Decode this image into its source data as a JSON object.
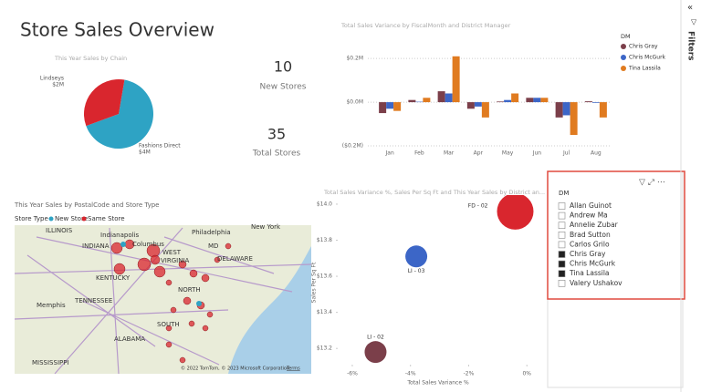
{
  "title": "Store Sales Overview",
  "cards": [
    {
      "value": 10,
      "label": "New Stores"
    },
    {
      "value": 35,
      "label": "Total Stores"
    }
  ],
  "map": {
    "title": "This Year Sales by PostalCode and Store Type",
    "legend_title": "Store Type",
    "legend": [
      {
        "name": "New Store",
        "color": "#2ea3c4"
      },
      {
        "name": "Same Store",
        "color": "#d9262e"
      }
    ],
    "labels": [
      "ILLINOIS",
      "Indianapolis",
      "INDIANA",
      "Columbus",
      "WEST",
      "VIRGINIA",
      "KENTUCKY",
      "Philadelphia",
      "MD",
      "DELAWARE",
      "New York",
      "Memphis",
      "TENNESSEE",
      "NORTH",
      "SOUTH",
      "ALABAMA",
      "MISSISSIPPI"
    ],
    "attribution": "© 2022 TomTom, © 2023 Microsoft Corporation",
    "terms": "Terms"
  },
  "slicer": {
    "title": "DM",
    "items": [
      {
        "name": "Allan Guinot",
        "checked": false
      },
      {
        "name": "Andrew Ma",
        "checked": false
      },
      {
        "name": "Annelie Zubar",
        "checked": false
      },
      {
        "name": "Brad Sutton",
        "checked": false
      },
      {
        "name": "Carlos Grilo",
        "checked": false
      },
      {
        "name": "Chris Gray",
        "checked": true
      },
      {
        "name": "Chris McGurk",
        "checked": true
      },
      {
        "name": "Tina Lassila",
        "checked": true
      },
      {
        "name": "Valery Ushakov",
        "checked": false
      }
    ]
  },
  "filters": {
    "title": "Filters"
  },
  "chart_data": [
    {
      "type": "pie",
      "title": "This Year Sales by Chain",
      "categories": [
        "Lindseys",
        "Fashions Direct"
      ],
      "values": [
        2,
        4
      ],
      "value_labels": [
        "$2M",
        "$4M"
      ],
      "colors": [
        "#d9262e",
        "#2ea3c4"
      ]
    },
    {
      "type": "bar",
      "title": "Total Sales Variance by FiscalMonth and District Manager",
      "categories": [
        "Jan",
        "Feb",
        "Mar",
        "Apr",
        "May",
        "Jun",
        "Jul",
        "Aug"
      ],
      "series": [
        {
          "name": "Chris Gray",
          "color": "#7b3f4a",
          "values": [
            -0.05,
            0.01,
            0.05,
            -0.03,
            0.003,
            0.02,
            -0.07,
            0.004
          ]
        },
        {
          "name": "Chris McGurk",
          "color": "#3c66c7",
          "values": [
            -0.03,
            0.002,
            0.04,
            -0.02,
            0.01,
            0.02,
            -0.06,
            -0.003
          ]
        },
        {
          "name": "Tina Lassila",
          "color": "#e07b20",
          "values": [
            -0.04,
            0.02,
            0.21,
            -0.07,
            0.04,
            0.02,
            -0.15,
            -0.07
          ]
        }
      ],
      "legend_title": "DM",
      "ylim": [
        -0.2,
        0.28
      ],
      "yticks": [
        {
          "value": -0.2,
          "label": "($0.2M)"
        },
        {
          "value": 0,
          "label": "$0.0M"
        },
        {
          "value": 0.2,
          "label": "$0.2M"
        }
      ],
      "grid": true
    },
    {
      "type": "scatter",
      "title": "Total Sales Variance %, Sales Per Sq Ft and This Year Sales by District an...",
      "x_label": "Total Sales Variance %",
      "y_label": "Sales Per Sq Ft",
      "labels": [
        "FD - 02",
        "LI - 03",
        "LI - 02"
      ],
      "x": [
        -0.4,
        -3.8,
        -5.2
      ],
      "values": [
        13.96,
        13.71,
        13.18
      ],
      "colors": [
        "#d9262e",
        "#3c66c7",
        "#7b3f4a"
      ],
      "xlim": [
        -6.5,
        0.4
      ],
      "ylim": [
        13.11,
        14.03
      ],
      "xticks": [
        {
          "value": -6,
          "label": "-6%"
        },
        {
          "value": -4,
          "label": "-4%"
        },
        {
          "value": -2,
          "label": "-2%"
        },
        {
          "value": 0,
          "label": "0%"
        }
      ],
      "yticks": [
        {
          "value": 13.2,
          "label": "$13.2"
        },
        {
          "value": 13.4,
          "label": "$13.4"
        },
        {
          "value": 13.6,
          "label": "$13.6"
        },
        {
          "value": 13.8,
          "label": "$13.8"
        },
        {
          "value": 14.0,
          "label": "$14.0"
        }
      ]
    }
  ]
}
